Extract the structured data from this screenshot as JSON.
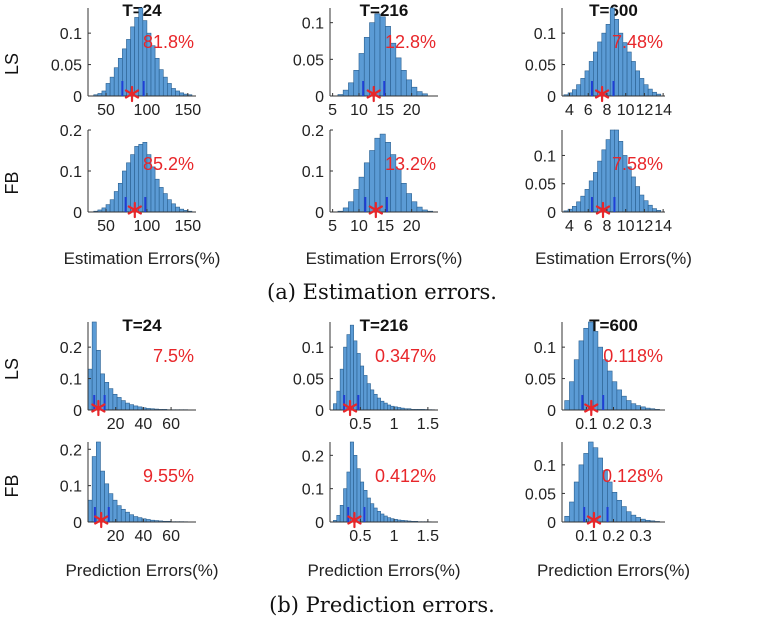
{
  "figure": {
    "caption_a": "(a) Estimation errors.",
    "caption_b": "(b) Prediction errors.",
    "col_titles": [
      "T=24",
      "T=216",
      "T=600"
    ],
    "row_labels": [
      "LS",
      "FB"
    ],
    "xlabel_a": "Estimation Errors(%)",
    "xlabel_b": "Prediction Errors(%)",
    "bar_color": "#5b9bd5",
    "median_color": "#e8262a",
    "quantile_color": "#1f3fd6",
    "annotation_color": "#e8262a"
  },
  "chart_data": [
    {
      "type": "bar",
      "group": "a",
      "col": 0,
      "row": 0,
      "annotation": "81.8%",
      "xlim": [
        28,
        160
      ],
      "ylim": [
        0,
        0.14
      ],
      "xticks": [
        50,
        100,
        150
      ],
      "yticks": [
        0,
        0.05,
        0.1
      ],
      "ytick_labels": [
        "0",
        "0.05",
        "0.1"
      ],
      "bins_start": 35,
      "bin_width": 5,
      "values": [
        0.002,
        0.004,
        0.008,
        0.02,
        0.03,
        0.045,
        0.06,
        0.075,
        0.09,
        0.11,
        0.125,
        0.14,
        0.12,
        0.1,
        0.08,
        0.06,
        0.042,
        0.03,
        0.02,
        0.012,
        0.008,
        0.005,
        0.003,
        0.002
      ],
      "median": 81.8,
      "quantiles": [
        70,
        96
      ]
    },
    {
      "type": "bar",
      "group": "a",
      "col": 1,
      "row": 0,
      "annotation": "12.8%",
      "xlim": [
        4.5,
        25
      ],
      "ylim": [
        0,
        0.12
      ],
      "xticks": [
        5,
        10,
        15,
        20
      ],
      "yticks": [
        0,
        0.05,
        0.1
      ],
      "ytick_labels": [
        "0",
        "0.05",
        "0.1"
      ],
      "bins_start": 6,
      "bin_width": 1,
      "values": [
        0.002,
        0.008,
        0.018,
        0.035,
        0.058,
        0.08,
        0.1,
        0.112,
        0.108,
        0.095,
        0.072,
        0.052,
        0.035,
        0.022,
        0.012,
        0.006,
        0.003
      ],
      "median": 12.8,
      "quantiles": [
        10.8,
        14.8
      ]
    },
    {
      "type": "bar",
      "group": "a",
      "col": 2,
      "row": 0,
      "annotation": "7.48%",
      "xlim": [
        3.2,
        14.2
      ],
      "ylim": [
        0,
        0.14
      ],
      "xticks": [
        4,
        6,
        8,
        10,
        12,
        14
      ],
      "yticks": [
        0,
        0.05,
        0.1
      ],
      "ytick_labels": [
        "0",
        "0.05",
        "0.1"
      ],
      "bins_start": 3.4,
      "bin_width": 0.45,
      "values": [
        0.002,
        0.005,
        0.01,
        0.018,
        0.028,
        0.04,
        0.055,
        0.07,
        0.086,
        0.1,
        0.114,
        0.14,
        0.122,
        0.1,
        0.085,
        0.07,
        0.055,
        0.04,
        0.028,
        0.018,
        0.011,
        0.006,
        0.003
      ],
      "median": 7.48,
      "quantiles": [
        6.4,
        8.7
      ]
    },
    {
      "type": "bar",
      "group": "a",
      "col": 0,
      "row": 1,
      "annotation": "85.2%",
      "xlim": [
        28,
        160
      ],
      "ylim": [
        0,
        0.2
      ],
      "xticks": [
        50,
        100,
        150
      ],
      "yticks": [
        0,
        0.1,
        0.2
      ],
      "ytick_labels": [
        "0",
        "0.1",
        "0.2"
      ],
      "bins_start": 35,
      "bin_width": 5,
      "values": [
        0.002,
        0.005,
        0.01,
        0.018,
        0.03,
        0.05,
        0.07,
        0.1,
        0.12,
        0.14,
        0.16,
        0.165,
        0.17,
        0.14,
        0.11,
        0.08,
        0.06,
        0.045,
        0.03,
        0.02,
        0.012,
        0.007,
        0.004,
        0.002
      ],
      "median": 85.2,
      "quantiles": [
        74,
        98
      ]
    },
    {
      "type": "bar",
      "group": "a",
      "col": 1,
      "row": 1,
      "annotation": "13.2%",
      "xlim": [
        4.5,
        25
      ],
      "ylim": [
        0,
        0.2
      ],
      "xticks": [
        5,
        10,
        15,
        20
      ],
      "yticks": [
        0,
        0.1,
        0.2
      ],
      "ytick_labels": [
        "0",
        "0.1",
        "0.2"
      ],
      "bins_start": 6,
      "bin_width": 1,
      "values": [
        0.002,
        0.01,
        0.025,
        0.055,
        0.085,
        0.12,
        0.15,
        0.18,
        0.19,
        0.17,
        0.14,
        0.105,
        0.07,
        0.045,
        0.025,
        0.012,
        0.005,
        0.002
      ],
      "median": 13.2,
      "quantiles": [
        11.2,
        15.3
      ]
    },
    {
      "type": "bar",
      "group": "a",
      "col": 2,
      "row": 1,
      "annotation": "7.58%",
      "xlim": [
        3.2,
        14.2
      ],
      "ylim": [
        0,
        0.145
      ],
      "xticks": [
        4,
        6,
        8,
        10,
        12,
        14
      ],
      "yticks": [
        0,
        0.05,
        0.1
      ],
      "ytick_labels": [
        "0",
        "0.05",
        "0.1"
      ],
      "bins_start": 3.4,
      "bin_width": 0.45,
      "values": [
        0.002,
        0.005,
        0.01,
        0.018,
        0.028,
        0.04,
        0.055,
        0.07,
        0.09,
        0.11,
        0.128,
        0.145,
        0.145,
        0.125,
        0.1,
        0.08,
        0.062,
        0.045,
        0.03,
        0.02,
        0.012,
        0.006,
        0.003
      ],
      "median": 7.58,
      "quantiles": [
        6.4,
        8.8
      ]
    },
    {
      "type": "bar",
      "group": "b",
      "col": 0,
      "row": 0,
      "annotation": "7.5%",
      "xlim": [
        0,
        78
      ],
      "ylim": [
        0,
        0.28
      ],
      "xticks": [
        20,
        40,
        60
      ],
      "yticks": [
        0,
        0.1,
        0.2
      ],
      "ytick_labels": [
        "0",
        "0.1",
        "0.2"
      ],
      "bins_start": 0,
      "bin_width": 3,
      "values": [
        0.13,
        0.3,
        0.19,
        0.115,
        0.088,
        0.068,
        0.05,
        0.04,
        0.03,
        0.022,
        0.017,
        0.013,
        0.01,
        0.007,
        0.005,
        0.004,
        0.003,
        0.002,
        0.002,
        0.001,
        0.001,
        0.001,
        0.001,
        0.001,
        0.0005
      ],
      "median": 7.5,
      "quantiles": [
        4.5,
        12
      ]
    },
    {
      "type": "bar",
      "group": "b",
      "col": 1,
      "row": 0,
      "annotation": "0.347%",
      "xlim": [
        0.05,
        1.65
      ],
      "ylim": [
        0,
        0.14
      ],
      "xticks": [
        0.5,
        1,
        1.5
      ],
      "yticks": [
        0,
        0.05,
        0.1
      ],
      "ytick_labels": [
        "0",
        "0.05",
        "0.1"
      ],
      "bins_start": 0.1,
      "bin_width": 0.05,
      "values": [
        0.01,
        0.03,
        0.065,
        0.1,
        0.12,
        0.135,
        0.11,
        0.09,
        0.07,
        0.055,
        0.042,
        0.032,
        0.025,
        0.019,
        0.014,
        0.011,
        0.008,
        0.006,
        0.005,
        0.004,
        0.003,
        0.002,
        0.002,
        0.001,
        0.001,
        0.001,
        0.001,
        0.0008,
        0.0006,
        0.0005
      ],
      "median": 0.347,
      "quantiles": [
        0.26,
        0.47
      ]
    },
    {
      "type": "bar",
      "group": "b",
      "col": 2,
      "row": 0,
      "annotation": "0.118%",
      "xlim": [
        0.01,
        0.39
      ],
      "ylim": [
        0,
        0.14
      ],
      "xticks": [
        0.1,
        0.2,
        0.3
      ],
      "yticks": [
        0,
        0.05,
        0.1
      ],
      "ytick_labels": [
        "0",
        "0.05",
        "0.1"
      ],
      "bins_start": 0.02,
      "bin_width": 0.0175,
      "values": [
        0.015,
        0.045,
        0.08,
        0.11,
        0.13,
        0.14,
        0.125,
        0.1,
        0.08,
        0.062,
        0.045,
        0.032,
        0.022,
        0.015,
        0.01,
        0.007,
        0.005,
        0.003,
        0.002,
        0.001
      ],
      "median": 0.118,
      "quantiles": [
        0.085,
        0.162
      ]
    },
    {
      "type": "bar",
      "group": "b",
      "col": 0,
      "row": 1,
      "annotation": "9.55%",
      "xlim": [
        0,
        78
      ],
      "ylim": [
        0,
        0.22
      ],
      "xticks": [
        20,
        40,
        60
      ],
      "yticks": [
        0,
        0.1,
        0.2
      ],
      "ytick_labels": [
        "0",
        "0.1",
        "0.2"
      ],
      "bins_start": 0,
      "bin_width": 3,
      "values": [
        0.06,
        0.18,
        0.22,
        0.14,
        0.105,
        0.078,
        0.06,
        0.045,
        0.035,
        0.027,
        0.02,
        0.015,
        0.012,
        0.009,
        0.007,
        0.005,
        0.004,
        0.003,
        0.002,
        0.002,
        0.001,
        0.001,
        0.001,
        0.0008,
        0.0005
      ],
      "median": 9.55,
      "quantiles": [
        5,
        15
      ]
    },
    {
      "type": "bar",
      "group": "b",
      "col": 1,
      "row": 1,
      "annotation": "0.412%",
      "xlim": [
        0.05,
        1.65
      ],
      "ylim": [
        0,
        0.24
      ],
      "xticks": [
        0.5,
        1,
        1.5
      ],
      "yticks": [
        0,
        0.1,
        0.2
      ],
      "ytick_labels": [
        "0",
        "0.1",
        "0.2"
      ],
      "bins_start": 0.1,
      "bin_width": 0.05,
      "values": [
        0.005,
        0.02,
        0.05,
        0.1,
        0.15,
        0.24,
        0.2,
        0.16,
        0.12,
        0.095,
        0.072,
        0.055,
        0.042,
        0.032,
        0.024,
        0.018,
        0.013,
        0.01,
        0.008,
        0.006,
        0.005,
        0.004,
        0.003,
        0.002,
        0.002,
        0.001,
        0.001,
        0.001,
        0.0008,
        0.0005
      ],
      "median": 0.412,
      "quantiles": [
        0.32,
        0.56
      ]
    },
    {
      "type": "bar",
      "group": "b",
      "col": 2,
      "row": 1,
      "annotation": "0.128%",
      "xlim": [
        0.01,
        0.39
      ],
      "ylim": [
        0,
        0.14
      ],
      "xticks": [
        0.1,
        0.2,
        0.3
      ],
      "yticks": [
        0,
        0.05,
        0.1
      ],
      "ytick_labels": [
        "0",
        "0.05",
        "0.1"
      ],
      "bins_start": 0.02,
      "bin_width": 0.0175,
      "values": [
        0.01,
        0.035,
        0.07,
        0.1,
        0.12,
        0.14,
        0.13,
        0.112,
        0.09,
        0.07,
        0.052,
        0.038,
        0.027,
        0.018,
        0.012,
        0.008,
        0.005,
        0.003,
        0.002,
        0.001
      ],
      "median": 0.128,
      "quantiles": [
        0.092,
        0.178
      ]
    }
  ]
}
